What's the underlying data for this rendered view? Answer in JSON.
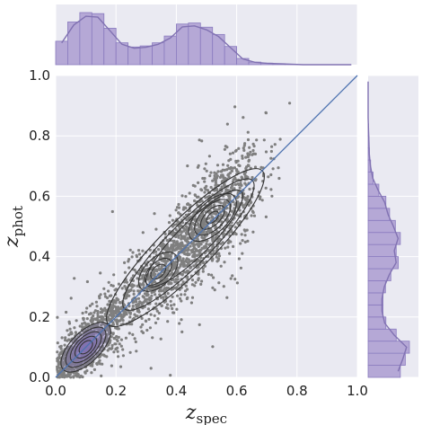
{
  "chart_data": {
    "type": "scatter",
    "title": "",
    "xlabel": "z",
    "xlabel_sub": "spec",
    "ylabel": "z",
    "ylabel_sub": "phot",
    "xlim": [
      0.0,
      1.0
    ],
    "ylim": [
      0.0,
      1.0
    ],
    "xticks": [
      "0.0",
      "0.2",
      "0.4",
      "0.6",
      "0.8",
      "1.0"
    ],
    "yticks": [
      "0.0",
      "0.2",
      "0.4",
      "0.6",
      "0.8",
      "1.0"
    ],
    "grid": true,
    "legend": "none",
    "one_to_one_line": {
      "x": [
        0.0,
        1.0
      ],
      "y": [
        0.0,
        1.0
      ]
    },
    "point_color": "#7f7f7f",
    "line_color": "#4c72b0",
    "contour_color": "#333333",
    "kde_fill_color": "#8172b2",
    "marginal_fill_color": "#b5a8d6",
    "background_color": "#eaeaf2",
    "density_modes": [
      {
        "x": 0.1,
        "y": 0.1,
        "weight": 0.4
      },
      {
        "x": 0.34,
        "y": 0.35,
        "weight": 0.22
      },
      {
        "x": 0.52,
        "y": 0.53,
        "weight": 0.38
      }
    ],
    "marginal_x_hist": {
      "bin_edges_start": 0.0,
      "bin_width": 0.04,
      "counts": [
        0.45,
        0.82,
        1.0,
        0.98,
        0.7,
        0.42,
        0.34,
        0.36,
        0.42,
        0.55,
        0.78,
        0.8,
        0.72,
        0.58,
        0.35,
        0.12,
        0.05,
        0.03,
        0.02,
        0.01,
        0.0,
        0.0,
        0.0,
        0.0,
        0.0
      ]
    },
    "marginal_y_hist": {
      "bin_edges_start": 0.0,
      "bin_width": 0.04,
      "counts": [
        0.78,
        0.9,
        1.0,
        0.68,
        0.43,
        0.36,
        0.36,
        0.42,
        0.55,
        0.73,
        0.68,
        0.78,
        0.66,
        0.52,
        0.43,
        0.26,
        0.12,
        0.06,
        0.03,
        0.02,
        0.01,
        0.0,
        0.0,
        0.0,
        0.0
      ]
    }
  }
}
